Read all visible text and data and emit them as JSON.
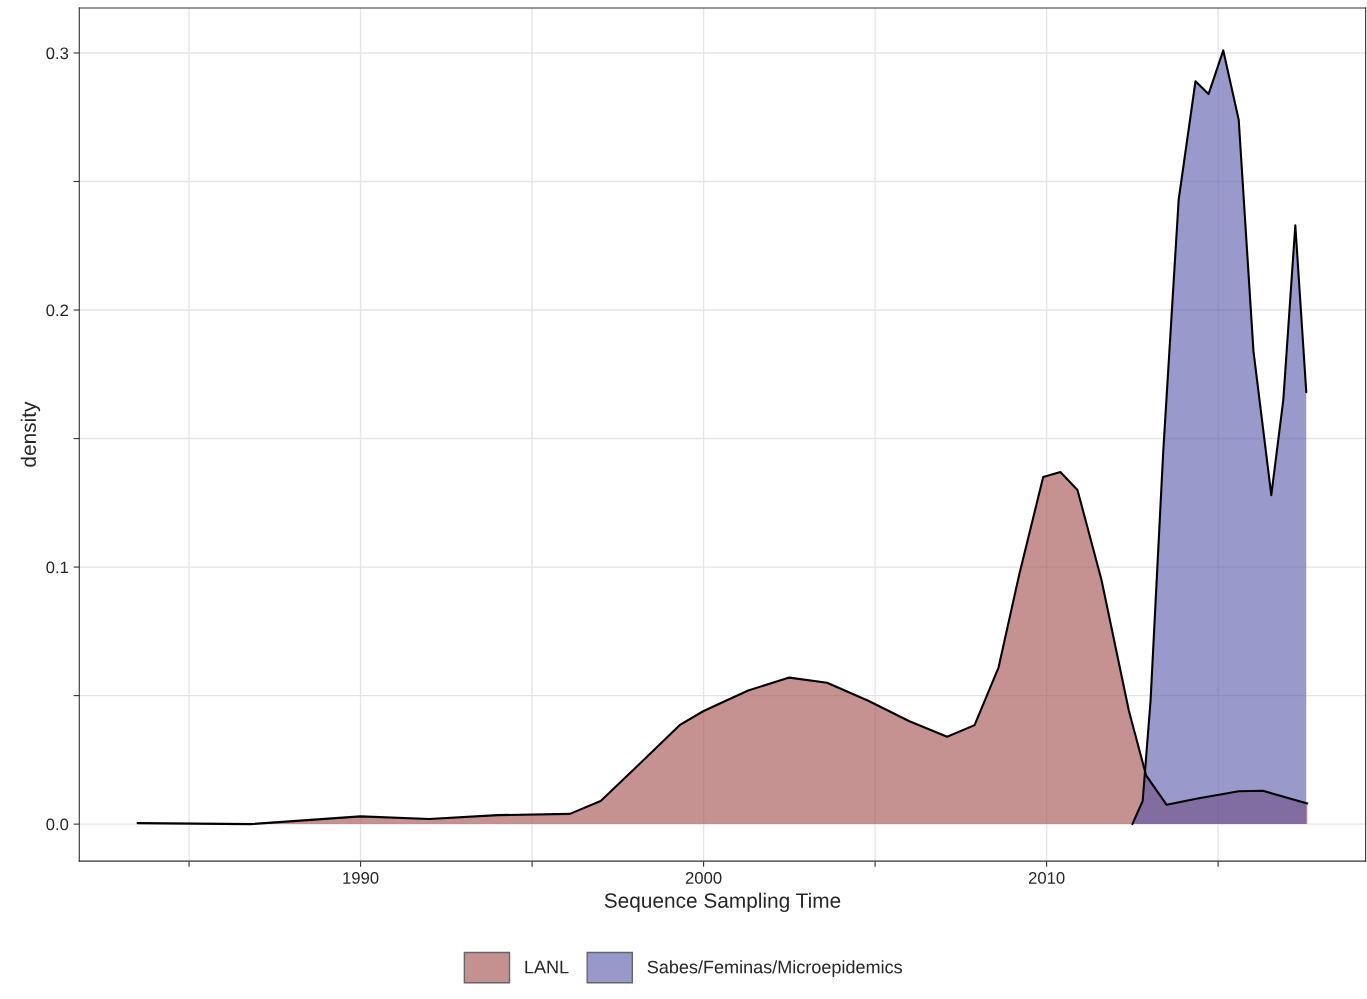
{
  "chart_data": {
    "type": "area",
    "xlabel": "Sequence Sampling Time",
    "ylabel": "density",
    "xlim": [
      1981.8,
      2019.3
    ],
    "ylim": [
      -0.0144,
      0.3175
    ],
    "xticks": [
      {
        "value": 1985,
        "label": null
      },
      1990,
      {
        "value": 1995,
        "label": null
      },
      2000,
      {
        "value": 2005,
        "label": null
      },
      2010,
      {
        "value": 2015,
        "label": null
      }
    ],
    "yticks": [
      {
        "value": 0,
        "label": "0.0"
      },
      {
        "value": 0.05,
        "label": null
      },
      {
        "value": 0.1,
        "label": "0.1"
      },
      {
        "value": 0.15,
        "label": null
      },
      {
        "value": 0.2,
        "label": "0.2"
      },
      {
        "value": 0.25,
        "label": null
      },
      {
        "value": 0.3,
        "label": "0.3"
      }
    ],
    "grid": true,
    "legend": "bottom",
    "series": [
      {
        "name": "LANL",
        "color": "#a04848",
        "x": [
          1983.5,
          1986.8,
          1990,
          1992,
          1994,
          1996.1,
          1997,
          1998.1,
          1999.3,
          2000,
          2001.3,
          2002.5,
          2003.6,
          2004.8,
          2006,
          2007.1,
          2007.9,
          2008.6,
          2009.2,
          2009.9,
          2010.4,
          2010.9,
          2011.6,
          2012.4,
          2012.9,
          2013.5,
          2014.4,
          2015.6,
          2016.3,
          2017.6
        ],
        "values": [
          0.0004,
          0,
          0.003,
          0.002,
          0.0035,
          0.004,
          0.009,
          0.023,
          0.0385,
          0.044,
          0.052,
          0.057,
          0.055,
          0.048,
          0.04,
          0.034,
          0.0385,
          0.061,
          0.097,
          0.135,
          0.137,
          0.13,
          0.095,
          0.044,
          0.019,
          0.0075,
          0.01,
          0.0128,
          0.013,
          0.008
        ]
      },
      {
        "name": "Sabes/Feminas/Microepidemics",
        "color": "#5555aa",
        "x": [
          2012.5,
          2012.8,
          2013.03,
          2013.4,
          2013.85,
          2014.34,
          2014.72,
          2015.15,
          2015.6,
          2016.03,
          2016.55,
          2016.9,
          2017.25,
          2017.57
        ],
        "values": [
          0,
          0.009,
          0.048,
          0.145,
          0.243,
          0.289,
          0.284,
          0.301,
          0.274,
          0.184,
          0.128,
          0.165,
          0.233,
          0.168
        ]
      }
    ]
  }
}
